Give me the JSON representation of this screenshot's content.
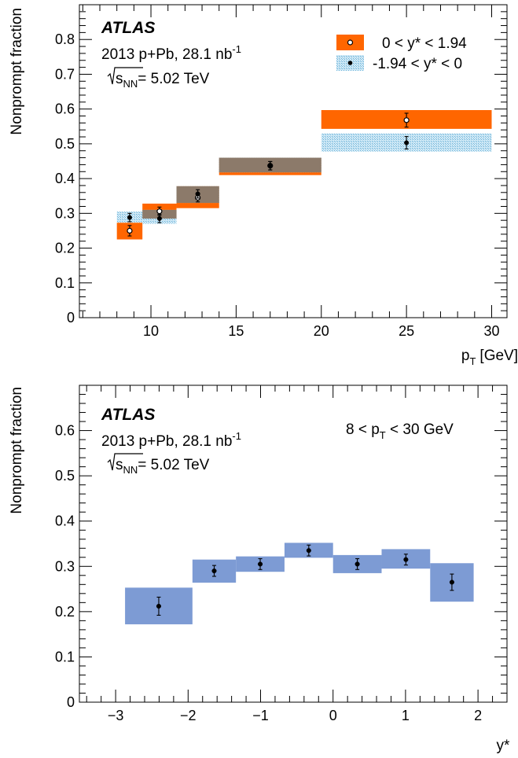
{
  "chart_data": [
    {
      "type": "bar",
      "ylabel": "Nonprompt fraction",
      "xlabel_main": "p",
      "xlabel_sub": "T",
      "xlabel_unit": "[GeV]",
      "xlim": [
        5.8,
        30.9
      ],
      "ylim": [
        0,
        0.9
      ],
      "xticks": [
        10,
        15,
        20,
        25,
        30
      ],
      "yticks": [
        0,
        0.1,
        0.2,
        0.3,
        0.4,
        0.5,
        0.6,
        0.7,
        0.8
      ],
      "atlas_label": "ATLAS",
      "info_line1": "2013 p+Pb, 28.1 nb",
      "info_line1_sup": "-1",
      "info_sqrt": "s",
      "info_sqrt_sub": "NN",
      "info_energy": "= 5.02 TeV",
      "colors": {
        "forward": "#ff6600",
        "backward": "#a9d6ee",
        "overlap": "#8c7a6a"
      },
      "series": [
        {
          "name": "0 < y* < 1.94",
          "marker": "open-circle",
          "bins": [
            {
              "x0": 8,
              "x1": 9.5,
              "value": 0.25,
              "err": 0.015,
              "sys": [
                0.225,
                0.273
              ]
            },
            {
              "x0": 9.5,
              "x1": 11.5,
              "value": 0.306,
              "err": 0.012,
              "sys": [
                0.285,
                0.328
              ]
            },
            {
              "x0": 11.5,
              "x1": 14,
              "value": 0.345,
              "err": 0.012,
              "sys": [
                0.315,
                0.378
              ]
            },
            {
              "x0": 14,
              "x1": 20,
              "value": 0.437,
              "err": 0.012,
              "sys": [
                0.41,
                0.46
              ]
            },
            {
              "x0": 20,
              "x1": 30,
              "value": 0.568,
              "err": 0.02,
              "sys": [
                0.543,
                0.597
              ]
            }
          ]
        },
        {
          "name": "-1.94 < y* < 0",
          "marker": "filled-circle",
          "bins": [
            {
              "x0": 8,
              "x1": 9.5,
              "value": 0.288,
              "err": 0.012,
              "sys": [
                0.274,
                0.305
              ]
            },
            {
              "x0": 9.5,
              "x1": 11.5,
              "value": 0.285,
              "err": 0.012,
              "sys": [
                0.27,
                0.31
              ]
            },
            {
              "x0": 11.5,
              "x1": 14,
              "value": 0.356,
              "err": 0.012,
              "sys": [
                0.33,
                0.378
              ]
            },
            {
              "x0": 14,
              "x1": 20,
              "value": 0.437,
              "err": 0.012,
              "sys": [
                0.418,
                0.46
              ]
            },
            {
              "x0": 20,
              "x1": 30,
              "value": 0.503,
              "err": 0.018,
              "sys": [
                0.478,
                0.53
              ]
            }
          ]
        }
      ]
    },
    {
      "type": "bar",
      "ylabel": "Nonprompt fraction",
      "xlabel": "y*",
      "xlim": [
        -3.5,
        2.4
      ],
      "ylim": [
        0,
        0.7
      ],
      "xticks": [
        -3,
        -2,
        -1,
        0,
        1,
        2
      ],
      "xtick_labels": [
        "−3",
        "−2",
        "−1",
        "0",
        "1",
        "2"
      ],
      "yticks": [
        0,
        0.1,
        0.2,
        0.3,
        0.4,
        0.5,
        0.6
      ],
      "atlas_label": "ATLAS",
      "info_line1": "2013 p+Pb, 28.1 nb",
      "info_line1_sup": "-1",
      "info_sqrt": "s",
      "info_sqrt_sub": "NN",
      "info_energy": "= 5.02 TeV",
      "range_pre": "8 < p",
      "range_sub": "T",
      "range_post": " < 30 GeV",
      "colors": {
        "box": "#7d9bd4"
      },
      "series": [
        {
          "marker": "filled-circle",
          "bins": [
            {
              "x0": -2.87,
              "x1": -1.94,
              "value": 0.212,
              "err": 0.02,
              "sys": [
                0.172,
                0.253
              ]
            },
            {
              "x0": -1.94,
              "x1": -1.34,
              "value": 0.29,
              "err": 0.012,
              "sys": [
                0.264,
                0.315
              ]
            },
            {
              "x0": -1.34,
              "x1": -0.67,
              "value": 0.305,
              "err": 0.012,
              "sys": [
                0.288,
                0.322
              ]
            },
            {
              "x0": -0.67,
              "x1": 0.0,
              "value": 0.335,
              "err": 0.012,
              "sys": [
                0.319,
                0.352
              ]
            },
            {
              "x0": 0.0,
              "x1": 0.67,
              "value": 0.305,
              "err": 0.012,
              "sys": [
                0.285,
                0.325
              ]
            },
            {
              "x0": 0.67,
              "x1": 1.34,
              "value": 0.315,
              "err": 0.012,
              "sys": [
                0.295,
                0.338
              ]
            },
            {
              "x0": 1.34,
              "x1": 1.94,
              "value": 0.265,
              "err": 0.018,
              "sys": [
                0.222,
                0.307
              ]
            }
          ]
        }
      ]
    }
  ]
}
